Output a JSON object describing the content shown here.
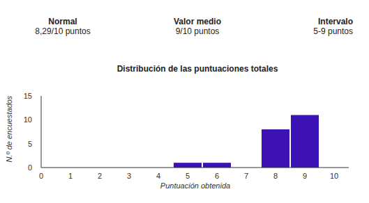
{
  "chart_data": {
    "type": "bar",
    "title": "Distribución de las puntuaciones totales",
    "annotations": [
      {
        "label": "Normal",
        "text": "8,29/10 puntos"
      },
      {
        "label": "Valor medio",
        "text": "9/10 puntos"
      },
      {
        "label": "Intervalo",
        "text": "5-9 puntos"
      }
    ],
    "x_label": "Puntuación obtenida",
    "y_label": "N.º de encuestados",
    "x": [
      5,
      6,
      8,
      9
    ],
    "values": [
      1,
      1,
      8,
      11
    ],
    "color": "#3d12b4",
    "xlim": [
      0,
      10.5
    ],
    "xticks": [
      0,
      1,
      2,
      3,
      4,
      5,
      6,
      7,
      8,
      9,
      10
    ],
    "ylim": [
      0,
      15
    ],
    "yticks": [
      0,
      5,
      10,
      15
    ],
    "grid": false
  }
}
